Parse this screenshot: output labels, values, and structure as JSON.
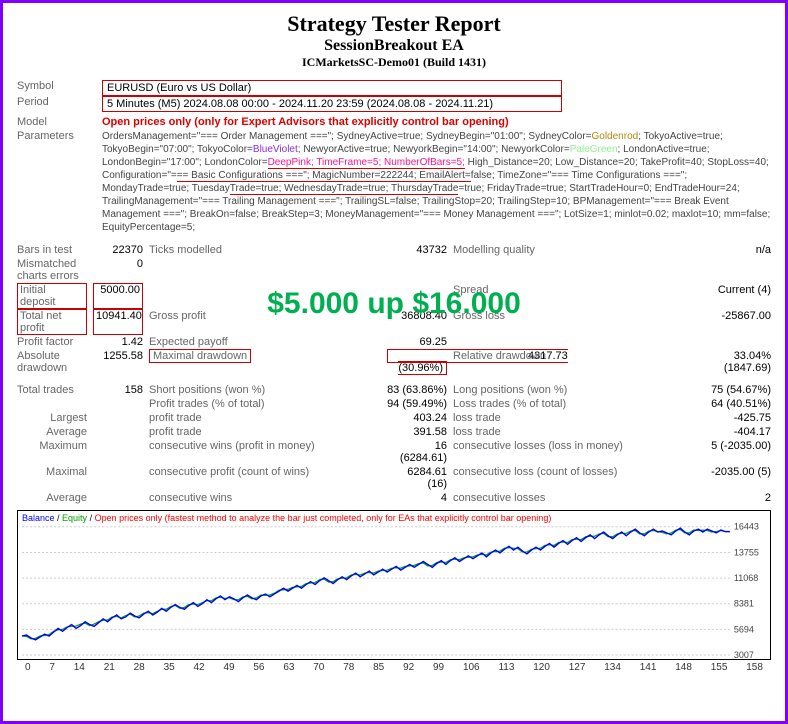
{
  "header": {
    "title": "Strategy Tester Report",
    "ea_name": "SessionBreakout EA",
    "server": "ICMarketsSC-Demo01 (Build 1431)"
  },
  "info": {
    "symbol_label": "Symbol",
    "symbol_value": "EURUSD (Euro vs US Dollar)",
    "period_label": "Period",
    "period_value": "5 Minutes (M5) 2024.08.08 00:00 - 2024.11.20 23:59 (2024.08.08 - 2024.11.21)",
    "model_label": "Model",
    "model_value": "Open prices only (only for Expert Advisors that explicitly control bar opening)",
    "params_label": "Parameters"
  },
  "overlay": "$5.000 up $16.000",
  "stats": {
    "bars_test_lbl": "Bars in test",
    "bars_test": "22370",
    "ticks_lbl": "Ticks modelled",
    "ticks": "43732",
    "mq_lbl": "Modelling quality",
    "mq": "n/a",
    "mce_lbl": "Mismatched charts errors",
    "mce": "0",
    "init_dep_lbl": "Initial deposit",
    "init_dep": "5000.00",
    "spread_lbl": "Spread",
    "spread": "Current (4)",
    "net_lbl": "Total net profit",
    "net": "10941.40",
    "gp_lbl": "Gross profit",
    "gp": "36808.40",
    "gl_lbl": "Gross loss",
    "gl": "-25867.00",
    "pf_lbl": "Profit factor",
    "pf": "1.42",
    "ep_lbl": "Expected payoff",
    "ep": "69.25",
    "ad_lbl": "Absolute drawdown",
    "ad": "1255.58",
    "md_lbl": "Maximal drawdown",
    "md": "4317.73 (30.96%)",
    "rd_lbl": "Relative drawdown",
    "rd": "33.04% (1847.69)",
    "tt_lbl": "Total trades",
    "tt": "158",
    "sp_lbl": "Short positions (won %)",
    "sp": "83 (63.86%)",
    "lp_lbl": "Long positions (won %)",
    "lp": "75 (54.67%)",
    "pt_lbl": "Profit trades (% of total)",
    "pt": "94 (59.49%)",
    "lt_lbl": "Loss trades (% of total)",
    "lt": "64 (40.51%)",
    "largest_lbl": "Largest",
    "lpt_lbl": "profit trade",
    "lpt": "403.24",
    "llt_lbl": "loss trade",
    "llt": "-425.75",
    "avg_lbl": "Average",
    "avpt": "391.58",
    "avlt": "-404.17",
    "max_lbl": "Maximum",
    "mcw_lbl": "consecutive wins (profit in money)",
    "mcw": "16 (6284.61)",
    "mcl_lbl": "consecutive losses (loss in money)",
    "mcl": "5 (-2035.00)",
    "maxl_lbl": "Maximal",
    "mcp_lbl": "consecutive profit (count of wins)",
    "mcp": "6284.61 (16)",
    "mcL_lbl": "consecutive loss (count of losses)",
    "mcL": "-2035.00 (5)",
    "avgw_lbl": "consecutive wins",
    "avgw": "4",
    "avgl_lbl": "consecutive losses",
    "avgl": "2"
  },
  "chart": {
    "legend_balance": "Balance",
    "legend_equity": "Equity",
    "legend_open": "Open prices only (fastest method to analyze the bar just completed, only for EAs that explicitly control bar opening)",
    "ylabels": [
      "16443",
      "13755",
      "11068",
      "8381",
      "5694",
      "3007"
    ],
    "xlabels": [
      "0",
      "7",
      "14",
      "21",
      "28",
      "35",
      "42",
      "49",
      "56",
      "63",
      "70",
      "78",
      "85",
      "92",
      "99",
      "106",
      "113",
      "120",
      "127",
      "134",
      "141",
      "148",
      "155",
      "158"
    ],
    "ylim": [
      3007,
      16443
    ],
    "xlim": [
      0,
      158
    ],
    "balance_color": "#0000ff",
    "equity_color": "#00a000",
    "grid_color": "#cccccc",
    "balance_series": [
      5000,
      5100,
      4800,
      4600,
      4900,
      5200,
      5000,
      5400,
      5800,
      5500,
      5900,
      6200,
      5800,
      6100,
      6500,
      6200,
      6000,
      6400,
      6800,
      6500,
      6900,
      7200,
      6800,
      7000,
      7400,
      7100,
      6900,
      7300,
      7600,
      7200,
      7500,
      7900,
      7600,
      8000,
      8300,
      8000,
      7800,
      8200,
      8500,
      8100,
      8400,
      8800,
      8500,
      8900,
      9200,
      8800,
      9100,
      8900,
      8600,
      9000,
      9300,
      9000,
      8800,
      9200,
      9400,
      9100,
      9400,
      9700,
      10000,
      9700,
      10000,
      10300,
      10000,
      10400,
      10700,
      10400,
      10800,
      11100,
      10800,
      10500,
      10900,
      11200,
      10900,
      11300,
      11600,
      11200,
      11500,
      11800,
      11400,
      11700,
      12000,
      11700,
      12000,
      12300,
      11900,
      12200,
      12500,
      12200,
      12500,
      12800,
      12500,
      12200,
      12600,
      12900,
      12500,
      12900,
      13200,
      12800,
      13100,
      13400,
      13100,
      13400,
      13700,
      13300,
      13700,
      14000,
      13700,
      14100,
      14400,
      14000,
      14300,
      13900,
      13600,
      14000,
      14300,
      14000,
      14400,
      14700,
      14300,
      14700,
      15000,
      14600,
      15000,
      15300,
      14900,
      15300,
      15600,
      15200,
      15600,
      15900,
      15500,
      15200,
      15600,
      15900,
      15500,
      15900,
      16200,
      15800,
      15500,
      15900,
      16200,
      15900,
      16000,
      15800,
      15600,
      16000,
      16300,
      15900,
      15600,
      16000,
      16200,
      15900,
      16200,
      16000,
      15800,
      16100,
      15941,
      15941
    ],
    "equity_series": [
      5000,
      4950,
      4700,
      4750,
      5000,
      5050,
      5150,
      5500,
      5650,
      5700,
      5950,
      6000,
      6050,
      6250,
      6350,
      6100,
      6250,
      6500,
      6650,
      6700,
      7000,
      7050,
      6900,
      7150,
      7300,
      7000,
      7100,
      7400,
      7450,
      7350,
      7600,
      7800,
      7800,
      8100,
      8200,
      7900,
      8000,
      8300,
      8350,
      8300,
      8500,
      8700,
      8700,
      9000,
      9050,
      8950,
      9000,
      8800,
      8800,
      9100,
      9150,
      8900,
      9000,
      9300,
      9250,
      9300,
      9500,
      9800,
      9850,
      9900,
      10100,
      10150,
      10200,
      10500,
      10550,
      10600,
      10900,
      10950,
      10650,
      10700,
      11000,
      11050,
      11100,
      11400,
      11450,
      11400,
      11600,
      11650,
      11600,
      11800,
      11850,
      11900,
      12100,
      12150,
      12100,
      12300,
      12350,
      12400,
      12600,
      12650,
      12350,
      12400,
      12700,
      12750,
      12700,
      13000,
      13050,
      13000,
      13200,
      13250,
      13300,
      13500,
      13550,
      13500,
      13800,
      13850,
      13900,
      14200,
      14250,
      14200,
      14150,
      13800,
      13800,
      14100,
      14150,
      14200,
      14500,
      14550,
      14500,
      14800,
      14850,
      14800,
      15100,
      15150,
      15100,
      15400,
      15450,
      15450,
      15700,
      15750,
      15400,
      15400,
      15700,
      15750,
      15750,
      16000,
      16050,
      15700,
      15700,
      16000,
      16050,
      15950,
      15850,
      15700,
      15800,
      16100,
      16150,
      15800,
      15800,
      16100,
      16050,
      16100,
      16050,
      15900,
      15950,
      16050,
      15941,
      15941
    ]
  }
}
